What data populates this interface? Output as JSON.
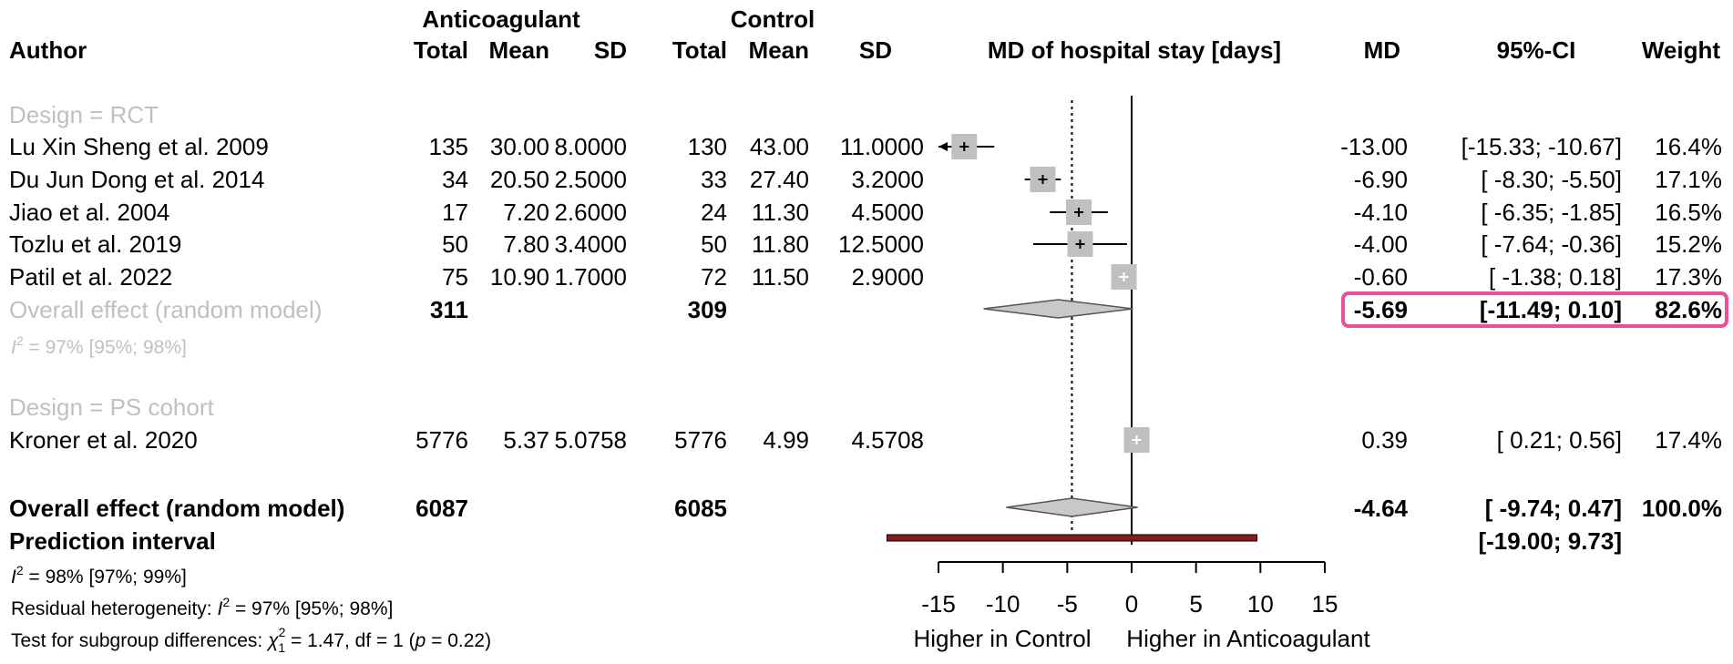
{
  "colors": {
    "text": "#000000",
    "subgroup_label": "#c0c0c0",
    "square": "#c0c0c0",
    "diamond_fill": "#c8c8c8",
    "prediction_bar": "#8b1a1a",
    "highlight": "#e8509a"
  },
  "headers": {
    "group_anticoagulant": "Anticoagulant",
    "group_control": "Control",
    "author": "Author",
    "total": "Total",
    "mean": "Mean",
    "sd": "SD",
    "plot_title": "MD of hospital stay [days]",
    "md": "MD",
    "ci": "95%-CI",
    "weight": "Weight"
  },
  "chart_data": {
    "type": "forest",
    "title": "MD of hospital stay [days]",
    "xlim": [
      -15,
      15
    ],
    "ticks": [
      -15,
      -10,
      -5,
      0,
      5,
      10,
      15
    ],
    "null_value": 0,
    "reference_line": -4.64,
    "x_label_left": "Higher in Control",
    "x_label_right": "Higher in Anticoagulant",
    "subgroups": [
      {
        "label": "Design = RCT",
        "studies": [
          {
            "author": "Lu Xin Sheng et al. 2009",
            "n1": "135",
            "mean1": "30.00",
            "sd1": "8.0000",
            "n2": "130",
            "mean2": "43.00",
            "sd2": "11.0000",
            "md": -13.0,
            "lo": -15.33,
            "hi": -10.67,
            "md_text": "-13.00",
            "ci_text": "[-15.33; -10.67]",
            "weight_text": "16.4%"
          },
          {
            "author": "Du Jun Dong et al. 2014",
            "n1": "34",
            "mean1": "20.50",
            "sd1": "2.5000",
            "n2": "33",
            "mean2": "27.40",
            "sd2": "3.2000",
            "md": -6.9,
            "lo": -8.3,
            "hi": -5.5,
            "md_text": "-6.90",
            "ci_text": "[ -8.30;  -5.50]",
            "weight_text": "17.1%"
          },
          {
            "author": "Jiao et al. 2004",
            "n1": "17",
            "mean1": "7.20",
            "sd1": "2.6000",
            "n2": "24",
            "mean2": "11.30",
            "sd2": "4.5000",
            "md": -4.1,
            "lo": -6.35,
            "hi": -1.85,
            "md_text": "-4.10",
            "ci_text": "[ -6.35;  -1.85]",
            "weight_text": "16.5%"
          },
          {
            "author": "Tozlu et al. 2019",
            "n1": "50",
            "mean1": "7.80",
            "sd1": "3.4000",
            "n2": "50",
            "mean2": "11.80",
            "sd2": "12.5000",
            "md": -4.0,
            "lo": -7.64,
            "hi": -0.36,
            "md_text": "-4.00",
            "ci_text": "[ -7.64;  -0.36]",
            "weight_text": "15.2%"
          },
          {
            "author": "Patil et al. 2022",
            "n1": "75",
            "mean1": "10.90",
            "sd1": "1.7000",
            "n2": "72",
            "mean2": "11.50",
            "sd2": "2.9000",
            "md": -0.6,
            "lo": -1.38,
            "hi": 0.18,
            "md_text": "-0.60",
            "ci_text": "[ -1.38;   0.18]",
            "weight_text": "17.3%"
          }
        ],
        "overall": {
          "label": "Overall effect (random model)",
          "n1": "311",
          "n2": "309",
          "md": -5.69,
          "lo": -11.49,
          "hi": 0.1,
          "md_text": "-5.69",
          "ci_text": "[-11.49;   0.10]",
          "weight_text": "82.6%"
        },
        "heterogeneity_prefix": "I",
        "heterogeneity_sup": "2",
        "heterogeneity_text": " = 97% [95%; 98%]"
      },
      {
        "label": "Design = PS cohort",
        "studies": [
          {
            "author": "Kroner et al. 2020",
            "n1": "5776",
            "mean1": "5.37",
            "sd1": "5.0758",
            "n2": "5776",
            "mean2": "4.99",
            "sd2": "4.5708",
            "md": 0.39,
            "lo": 0.21,
            "hi": 0.56,
            "md_text": "0.39",
            "ci_text": "[  0.21;   0.56]",
            "weight_text": "17.4%"
          }
        ]
      }
    ],
    "overall": {
      "label": "Overall effect (random model)",
      "n1": "6087",
      "n2": "6085",
      "md": -4.64,
      "lo": -9.74,
      "hi": 0.47,
      "md_text": "-4.64",
      "ci_text": "[ -9.74;   0.47]",
      "weight_text": "100.0%"
    },
    "prediction_interval": {
      "label": "Prediction interval",
      "lo": -19.0,
      "hi": 9.73,
      "ci_text": "[-19.00;   9.73]"
    },
    "footer": {
      "overall_het_prefix": "I",
      "overall_het_sup": "2",
      "overall_het_text": " = 98% [97%; 99%]",
      "residual_prefix": "Residual heterogeneity: ",
      "residual_i": "I",
      "residual_sup": "2",
      "residual_text": " = 97% [95%; 98%]",
      "subgroup_prefix": "Test for subgroup differences: ",
      "subgroup_chi": "χ",
      "subgroup_sup": "2",
      "subgroup_sub": "1",
      "subgroup_text": " = 1.47, df = 1 (",
      "subgroup_p": "p",
      "subgroup_tail": " = 0.22)"
    }
  }
}
